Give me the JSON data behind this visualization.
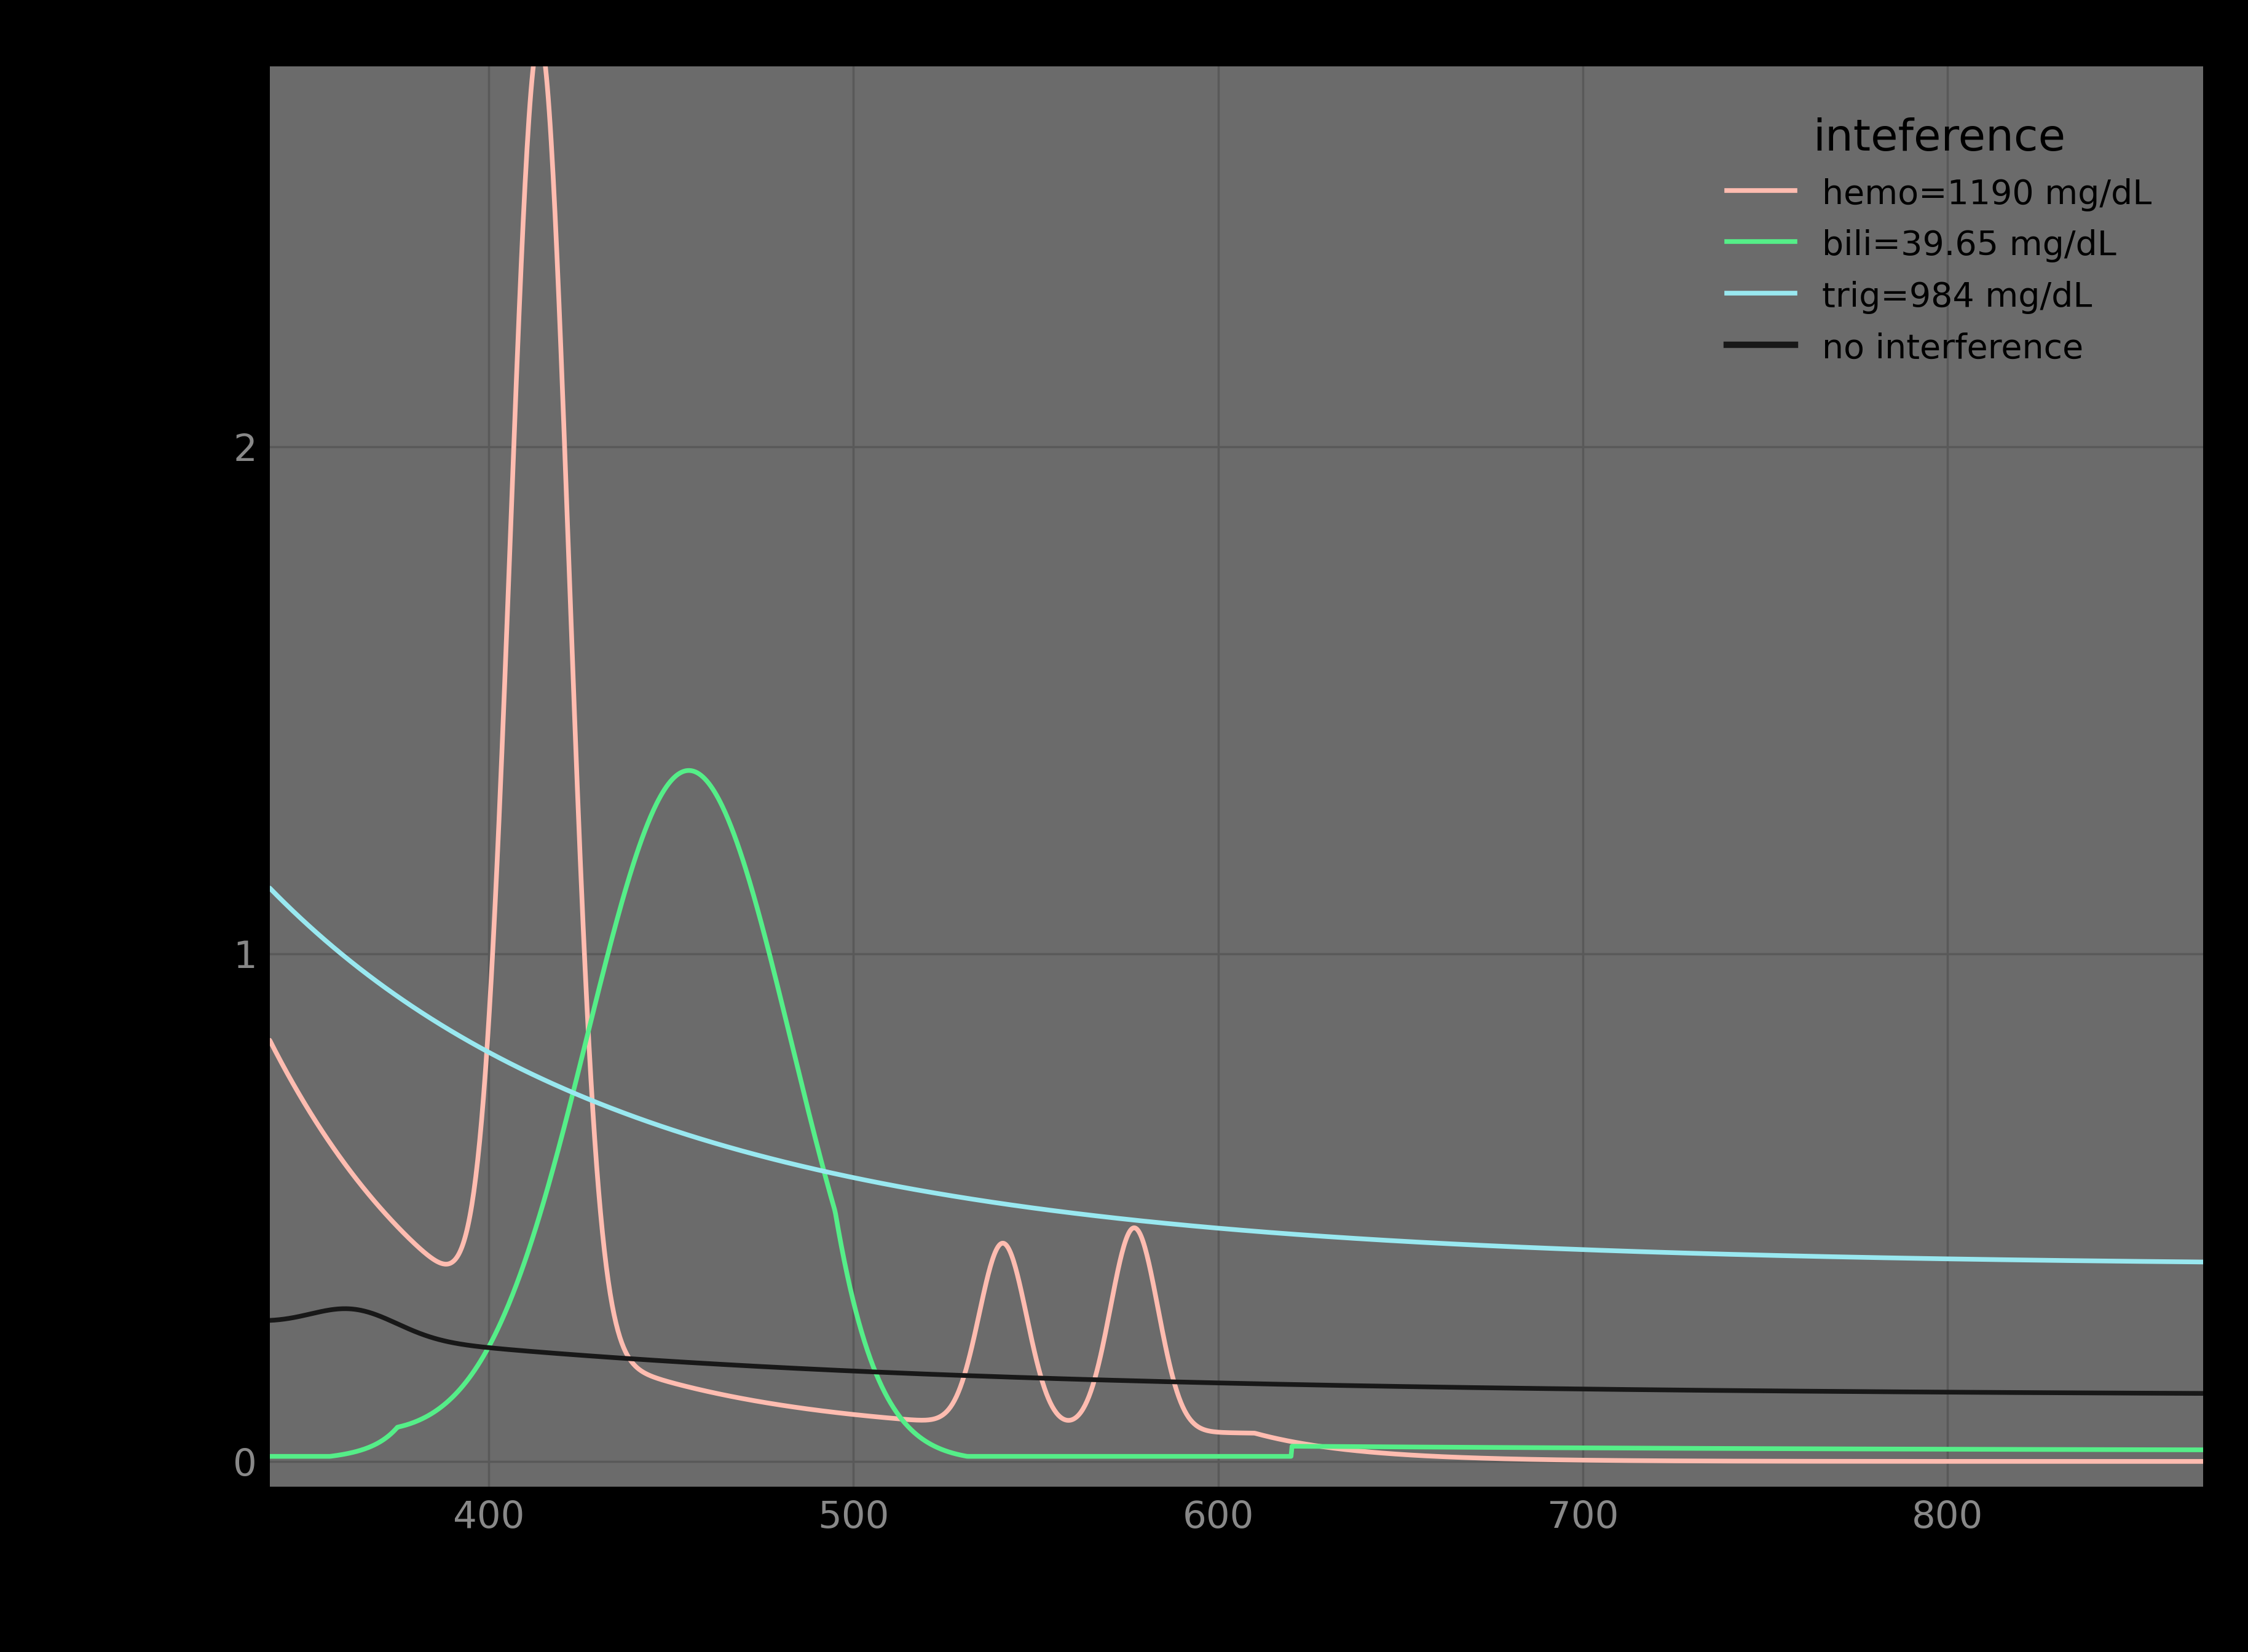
{
  "title": "inteference",
  "background_color": "#000000",
  "plot_bg_color": "#6b6b6b",
  "grid_color": "#595959",
  "x_min": 340,
  "x_max": 870,
  "y_min": -0.05,
  "y_max": 2.75,
  "x_ticks": [
    400,
    500,
    600,
    700,
    800
  ],
  "y_ticks": [
    0,
    1,
    2
  ],
  "tick_label_color": "#888888",
  "line_colors": {
    "hemo": "#ffbcb0",
    "bili": "#55ee88",
    "trig": "#99e8f0",
    "none": "#181818"
  },
  "legend_labels": [
    "hemo=1190 mg/dL",
    "bili=39.65 mg/dL",
    "trig=984 mg/dL",
    "no interference"
  ],
  "legend_colors": [
    "#ffbcb0",
    "#55ee88",
    "#99e8f0",
    "#181818"
  ],
  "line_width": 5.5,
  "title_fontsize": 52,
  "legend_fontsize": 40,
  "tick_fontsize": 44
}
